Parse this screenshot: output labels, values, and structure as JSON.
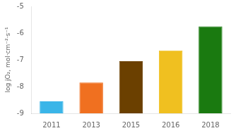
{
  "chart_data": {
    "type": "bar",
    "categories": [
      "2011",
      "2013",
      "2015",
      "2016",
      "2018"
    ],
    "values": [
      -8.55,
      -7.85,
      -7.05,
      -6.65,
      -5.75
    ],
    "bar_bottom": -9.0,
    "colors": [
      "#3ab5e8",
      "#f07020",
      "#6b4000",
      "#f0c020",
      "#1a7a10"
    ],
    "ylabel": "log jO₂, mol·cm⁻²·s⁻¹",
    "ylim": [
      -9.0,
      -5.0
    ],
    "yticks": [
      -9,
      -8,
      -7,
      -6,
      -5
    ],
    "grid": false
  }
}
